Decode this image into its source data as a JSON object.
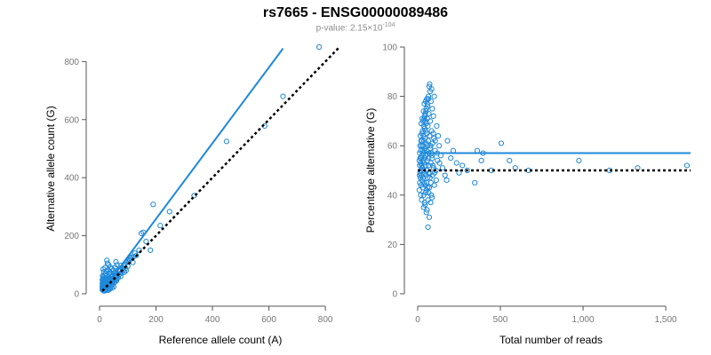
{
  "title": "rs7665 - ENSG00000089486",
  "subtitle": {
    "prefix": "p-value: 2.15×10",
    "exponent": "-104"
  },
  "chart_data": [
    {
      "type": "scatter",
      "name": "allele-count",
      "xlabel": "Reference allele count (A)",
      "ylabel": "Alternative allele count (G)",
      "xlim": [
        0,
        850
      ],
      "ylim": [
        0,
        850
      ],
      "xticks": [
        0,
        200,
        400,
        600,
        800
      ],
      "xtick_labels": [
        "0",
        "200",
        "400",
        "600",
        "800"
      ],
      "yticks": [
        0,
        200,
        400,
        600,
        800
      ],
      "ytick_labels": [
        "0",
        "200",
        "400",
        "600",
        "800"
      ],
      "point_color": "#1f88d9",
      "fit_line": {
        "x": [
          10,
          650
        ],
        "y": [
          10,
          845
        ],
        "color": "#1f88d9"
      },
      "reference_line": {
        "x": [
          10,
          850
        ],
        "y": [
          10,
          850
        ],
        "color": "#000000",
        "dashed": true
      },
      "points": [
        [
          778,
          850
        ],
        [
          650,
          680
        ],
        [
          585,
          578
        ],
        [
          450,
          525
        ],
        [
          335,
          338
        ],
        [
          248,
          283
        ],
        [
          215,
          235
        ],
        [
          190,
          308
        ],
        [
          180,
          150
        ],
        [
          165,
          180
        ],
        [
          155,
          212
        ],
        [
          148,
          208
        ],
        [
          125,
          140
        ],
        [
          120,
          128
        ],
        [
          110,
          122
        ],
        [
          105,
          112
        ],
        [
          100,
          95
        ],
        [
          95,
          108
        ],
        [
          90,
          102
        ],
        [
          85,
          80
        ],
        [
          82,
          88
        ],
        [
          80,
          90
        ],
        [
          78,
          72
        ],
        [
          75,
          60
        ],
        [
          72,
          82
        ],
        [
          70,
          78
        ],
        [
          68,
          65
        ],
        [
          66,
          55
        ],
        [
          64,
          68
        ],
        [
          62,
          60
        ],
        [
          60,
          50
        ],
        [
          58,
          72
        ],
        [
          56,
          48
        ],
        [
          54,
          62
        ],
        [
          52,
          58
        ],
        [
          50,
          46
        ],
        [
          48,
          52
        ],
        [
          46,
          40
        ],
        [
          45,
          58
        ],
        [
          44,
          44
        ],
        [
          42,
          38
        ],
        [
          40,
          50
        ],
        [
          38,
          42
        ],
        [
          36,
          55
        ],
        [
          35,
          32
        ],
        [
          34,
          46
        ],
        [
          33,
          38
        ],
        [
          32,
          60
        ],
        [
          31,
          35
        ],
        [
          30,
          48
        ],
        [
          29,
          28
        ],
        [
          28,
          42
        ],
        [
          27,
          52
        ],
        [
          26,
          36
        ],
        [
          25,
          30
        ],
        [
          24,
          62
        ],
        [
          24,
          44
        ],
        [
          23,
          26
        ],
        [
          22,
          38
        ],
        [
          22,
          70
        ],
        [
          21,
          32
        ],
        [
          21,
          50
        ],
        [
          20,
          28
        ],
        [
          20,
          90
        ],
        [
          20,
          40
        ],
        [
          19,
          24
        ],
        [
          19,
          55
        ],
        [
          18,
          34
        ],
        [
          18,
          45
        ],
        [
          17,
          22
        ],
        [
          17,
          65
        ],
        [
          17,
          30
        ],
        [
          16,
          38
        ],
        [
          16,
          48
        ],
        [
          16,
          20
        ],
        [
          15,
          28
        ],
        [
          15,
          75
        ],
        [
          15,
          42
        ],
        [
          14,
          25
        ],
        [
          14,
          35
        ],
        [
          14,
          58
        ],
        [
          13,
          18
        ],
        [
          13,
          30
        ],
        [
          13,
          45
        ],
        [
          13,
          85
        ],
        [
          12,
          22
        ],
        [
          12,
          38
        ],
        [
          12,
          52
        ],
        [
          12,
          28
        ],
        [
          11,
          16
        ],
        [
          11,
          32
        ],
        [
          11,
          42
        ],
        [
          11,
          62
        ],
        [
          10,
          20
        ],
        [
          10,
          26
        ],
        [
          10,
          35
        ],
        [
          10,
          48
        ],
        [
          10,
          14
        ],
        [
          26,
          115
        ],
        [
          28,
          105
        ],
        [
          32,
          100
        ],
        [
          38,
          92
        ],
        [
          44,
          86
        ],
        [
          50,
          80
        ],
        [
          36,
          75
        ],
        [
          40,
          66
        ],
        [
          55,
          90
        ],
        [
          62,
          100
        ],
        [
          58,
          110
        ],
        [
          30,
          82
        ],
        [
          24,
          78
        ],
        [
          34,
          70
        ],
        [
          46,
          64
        ],
        [
          52,
          70
        ],
        [
          66,
          82
        ],
        [
          72,
          68
        ],
        [
          76,
          98
        ],
        [
          86,
          96
        ],
        [
          92,
          88
        ],
        [
          98,
          112
        ],
        [
          104,
          118
        ],
        [
          112,
          126
        ],
        [
          130,
          132
        ],
        [
          140,
          150
        ],
        [
          118,
          108
        ],
        [
          88,
          74
        ],
        [
          94,
          80
        ],
        [
          42,
          28
        ],
        [
          48,
          34
        ],
        [
          54,
          40
        ],
        [
          60,
          45
        ],
        [
          38,
          22
        ],
        [
          32,
          18
        ],
        [
          26,
          14
        ],
        [
          22,
          12
        ],
        [
          18,
          10
        ],
        [
          14,
          10
        ],
        [
          30,
          12
        ],
        [
          36,
          16
        ],
        [
          44,
          20
        ],
        [
          50,
          24
        ]
      ]
    },
    {
      "type": "scatter",
      "name": "percentage",
      "xlabel": "Total number of reads",
      "ylabel": "Percentage alternative (G)",
      "xlim": [
        0,
        1650
      ],
      "ylim": [
        0,
        100
      ],
      "xticks": [
        0,
        500,
        1000,
        1500
      ],
      "xtick_labels": [
        "0",
        "500",
        "1,000",
        "1,500"
      ],
      "yticks": [
        0,
        20,
        40,
        60,
        80,
        100
      ],
      "ytick_labels": [
        "0",
        "20",
        "40",
        "60",
        "80",
        "100"
      ],
      "point_color": "#1f88d9",
      "mean_line": {
        "y": 57,
        "x": [
          30,
          1650
        ],
        "color": "#1f88d9"
      },
      "reference_line": {
        "y": 50,
        "x": [
          0,
          1650
        ],
        "color": "#000000",
        "dashed": true
      },
      "points": [
        [
          1628,
          52
        ],
        [
          1330,
          51
        ],
        [
          1160,
          50
        ],
        [
          975,
          54
        ],
        [
          670,
          50
        ],
        [
          590,
          51
        ],
        [
          555,
          54
        ],
        [
          505,
          61
        ],
        [
          445,
          50
        ],
        [
          395,
          57
        ],
        [
          385,
          54
        ],
        [
          360,
          58
        ],
        [
          345,
          45
        ],
        [
          300,
          50
        ],
        [
          270,
          52
        ],
        [
          250,
          49
        ],
        [
          235,
          53
        ],
        [
          215,
          58
        ],
        [
          200,
          55
        ],
        [
          180,
          62
        ],
        [
          175,
          46
        ],
        [
          165,
          48
        ],
        [
          150,
          51
        ],
        [
          140,
          56
        ],
        [
          130,
          60
        ],
        [
          120,
          54
        ],
        [
          115,
          68
        ],
        [
          110,
          50
        ],
        [
          105,
          58
        ],
        [
          100,
          80
        ],
        [
          100,
          44
        ],
        [
          98,
          63
        ],
        [
          95,
          72
        ],
        [
          92,
          52
        ],
        [
          90,
          48
        ],
        [
          88,
          75
        ],
        [
          86,
          56
        ],
        [
          84,
          66
        ],
        [
          82,
          40
        ],
        [
          80,
          78
        ],
        [
          80,
          53
        ],
        [
          78,
          60
        ],
        [
          76,
          70
        ],
        [
          75,
          82
        ],
        [
          74,
          49
        ],
        [
          72,
          64
        ],
        [
          70,
          84
        ],
        [
          70,
          43
        ],
        [
          68,
          57
        ],
        [
          67,
          73
        ],
        [
          66,
          52
        ],
        [
          65,
          80
        ],
        [
          64,
          62
        ],
        [
          63,
          38
        ],
        [
          62,
          55
        ],
        [
          61,
          68
        ],
        [
          60,
          76
        ],
        [
          60,
          47
        ],
        [
          59,
          60
        ],
        [
          58,
          71
        ],
        [
          57,
          54
        ],
        [
          56,
          65
        ],
        [
          55,
          79
        ],
        [
          55,
          50
        ],
        [
          54,
          42
        ],
        [
          53,
          58
        ],
        [
          52,
          69
        ],
        [
          52,
          33
        ],
        [
          51,
          61
        ],
        [
          50,
          74
        ],
        [
          50,
          48
        ],
        [
          49,
          56
        ],
        [
          48,
          66
        ],
        [
          48,
          78
        ],
        [
          47,
          52
        ],
        [
          46,
          44
        ],
        [
          46,
          70
        ],
        [
          45,
          59
        ],
        [
          44,
          63
        ],
        [
          44,
          36
        ],
        [
          43,
          55
        ],
        [
          42,
          72
        ],
        [
          42,
          49
        ],
        [
          41,
          67
        ],
        [
          40,
          58
        ],
        [
          40,
          77
        ],
        [
          39,
          45
        ],
        [
          38,
          62
        ],
        [
          38,
          53
        ],
        [
          37,
          68
        ],
        [
          36,
          40
        ],
        [
          36,
          57
        ],
        [
          35,
          74
        ],
        [
          34,
          50
        ],
        [
          34,
          64
        ],
        [
          33,
          47
        ],
        [
          32,
          60
        ],
        [
          32,
          70
        ],
        [
          31,
          54
        ],
        [
          30,
          43
        ],
        [
          30,
          66
        ],
        [
          29,
          58
        ],
        [
          28,
          51
        ],
        [
          28,
          71
        ],
        [
          27,
          62
        ],
        [
          26,
          46
        ],
        [
          26,
          56
        ],
        [
          25,
          65
        ],
        [
          24,
          52
        ],
        [
          24,
          38
        ],
        [
          23,
          60
        ],
        [
          22,
          48
        ],
        [
          22,
          69
        ],
        [
          21,
          55
        ],
        [
          20,
          44
        ],
        [
          20,
          62
        ],
        [
          19,
          50
        ],
        [
          18,
          58
        ],
        [
          18,
          40
        ],
        [
          17,
          53
        ],
        [
          16,
          47
        ],
        [
          16,
          64
        ],
        [
          15,
          55
        ],
        [
          14,
          49
        ],
        [
          14,
          60
        ],
        [
          13,
          45
        ],
        [
          12,
          52
        ],
        [
          12,
          57
        ],
        [
          11,
          48
        ],
        [
          10,
          54
        ],
        [
          10,
          42
        ],
        [
          62,
          27
        ],
        [
          70,
          31
        ],
        [
          56,
          34
        ],
        [
          78,
          37
        ],
        [
          86,
          39
        ],
        [
          66,
          41
        ],
        [
          90,
          61
        ],
        [
          94,
          65
        ],
        [
          106,
          62
        ],
        [
          112,
          46
        ],
        [
          118,
          57
        ],
        [
          124,
          64
        ],
        [
          132,
          53
        ],
        [
          58,
          77
        ],
        [
          64,
          79
        ],
        [
          72,
          85
        ],
        [
          84,
          83
        ],
        [
          52,
          75
        ],
        [
          46,
          73
        ],
        [
          40,
          71
        ],
        [
          76,
          59
        ],
        [
          82,
          57
        ],
        [
          88,
          55
        ],
        [
          96,
          51
        ],
        [
          102,
          49
        ],
        [
          54,
          45
        ],
        [
          60,
          43
        ],
        [
          66,
          49
        ],
        [
          74,
          47
        ],
        [
          80,
          45
        ],
        [
          48,
          41
        ],
        [
          42,
          37
        ],
        [
          36,
          35
        ]
      ]
    }
  ]
}
